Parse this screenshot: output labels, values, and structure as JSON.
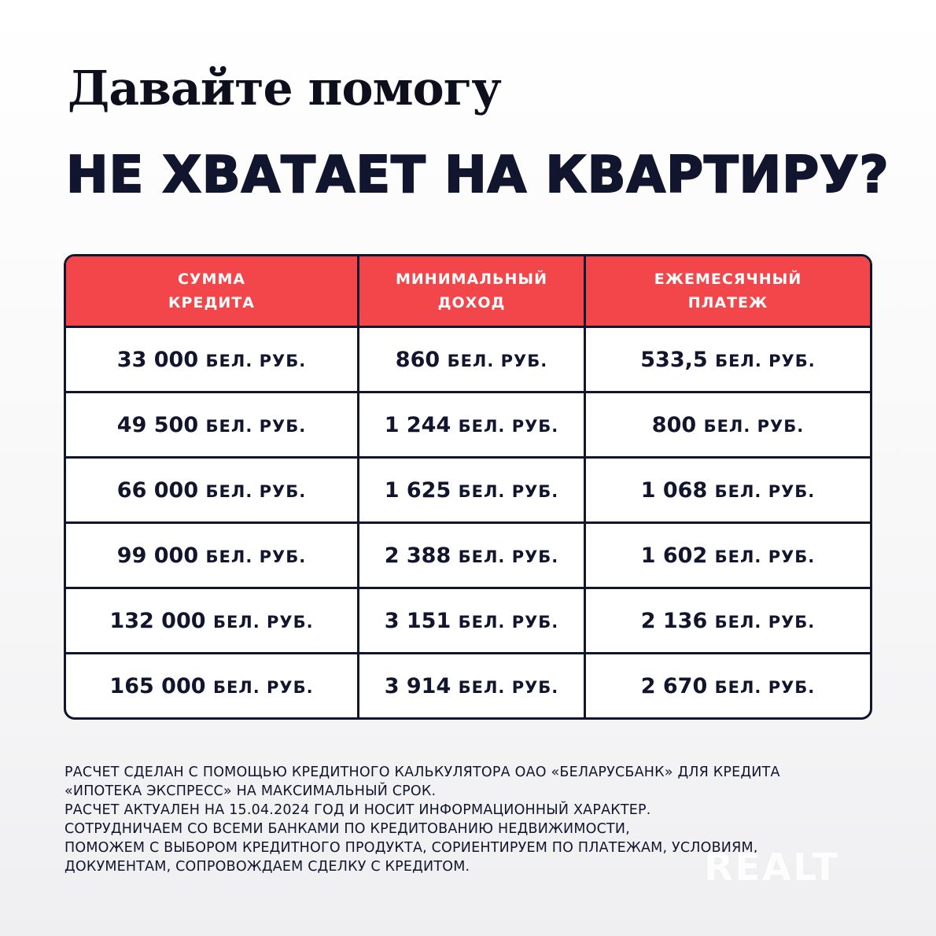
{
  "heading": "Давайте помогу",
  "subheading": "НЕ ХВАТАЕТ НА КВАРТИРУ?",
  "table": {
    "headers": [
      [
        "СУММА",
        "КРЕДИТА"
      ],
      [
        "МИНИМАЛЬНЫЙ",
        "ДОХОД"
      ],
      [
        "ЕЖЕМЕСЯЧНЫЙ",
        "ПЛАТЕЖ"
      ]
    ],
    "unit": "БЕЛ. РУБ.",
    "rows": [
      [
        "33 000",
        "860",
        "533,5"
      ],
      [
        "49 500",
        "1 244",
        "800"
      ],
      [
        "66 000",
        "1 625",
        "1 068"
      ],
      [
        "99 000",
        "2 388",
        "1 602"
      ],
      [
        "132 000",
        "3 151",
        "2 136"
      ],
      [
        "165 000",
        "3 914",
        "2 670"
      ]
    ]
  },
  "notes": [
    "РАСЧЕТ СДЕЛАН С ПОМОЩЬЮ КРЕДИТНОГО КАЛЬКУЛЯТОРА ОАО «БЕЛАРУСБАНК» ДЛЯ КРЕДИТА",
    "«ИПОТЕКА ЭКСПРЕСС» НА МАКСИМАЛЬНЫЙ СРОК.",
    "РАСЧЕТ АКТУАЛЕН НА 15.04.2024 ГОД И НОСИТ ИНФОРМАЦИОННЫЙ ХАРАКТЕР.",
    "СОТРУДНИЧАЕМ СО ВСЕМИ БАНКАМИ ПО КРЕДИТОВАНИЮ НЕДВИЖИМОСТИ,",
    "ПОМОЖЕМ С ВЫБОРОМ КРЕДИТНОГО ПРОДУКТА, СОРИЕНТИРУЕМ ПО ПЛАТЕЖАМ, УСЛОВИЯМ,",
    "ДОКУМЕНТАМ, СОПРОВОЖДАЕМ СДЕЛКУ С КРЕДИТОМ."
  ],
  "watermark": "REALT",
  "colors": {
    "header_red": "#f2464a",
    "navy": "#12152e"
  }
}
